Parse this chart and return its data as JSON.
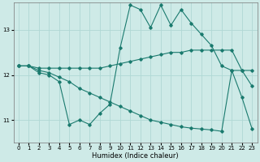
{
  "bg_color": "#ceeae7",
  "grid_color": "#b0d8d4",
  "line_color": "#1a7a6e",
  "xlabel": "Humidex (Indice chaleur)",
  "ylim": [
    10.5,
    13.6
  ],
  "xlim": [
    -0.5,
    23.5
  ],
  "yticks": [
    11,
    12,
    13
  ],
  "xticks": [
    0,
    1,
    2,
    3,
    4,
    5,
    6,
    7,
    8,
    9,
    10,
    11,
    12,
    13,
    14,
    15,
    16,
    17,
    18,
    19,
    20,
    21,
    22,
    23
  ],
  "line1_x": [
    0,
    1,
    2,
    3,
    4,
    5,
    6,
    7,
    8,
    9,
    10,
    11,
    12,
    13,
    14,
    15,
    16,
    17,
    18,
    19,
    20,
    21,
    22,
    23
  ],
  "line1_y": [
    12.2,
    12.2,
    12.05,
    12.0,
    11.85,
    10.9,
    11.0,
    10.9,
    11.15,
    11.35,
    12.6,
    13.55,
    13.45,
    13.05,
    13.55,
    13.1,
    13.45,
    13.15,
    12.9,
    12.65,
    12.2,
    12.1,
    12.1,
    11.75
  ],
  "line2_x": [
    0,
    1,
    2,
    3,
    4,
    5,
    6,
    7,
    8,
    9,
    10,
    11,
    12,
    13,
    14,
    15,
    16,
    17,
    18,
    19,
    20,
    21,
    22,
    23
  ],
  "line2_y": [
    12.2,
    12.2,
    12.15,
    12.15,
    12.15,
    12.15,
    12.15,
    12.15,
    12.15,
    12.2,
    12.25,
    12.3,
    12.35,
    12.4,
    12.45,
    12.5,
    12.5,
    12.55,
    12.55,
    12.55,
    12.55,
    12.55,
    12.1,
    12.1
  ],
  "line3_x": [
    0,
    1,
    2,
    3,
    4,
    5,
    6,
    7,
    8,
    9,
    10,
    11,
    12,
    13,
    14,
    15,
    16,
    17,
    18,
    19,
    20,
    21,
    22,
    23
  ],
  "line3_y": [
    12.2,
    12.2,
    12.1,
    12.05,
    11.95,
    11.85,
    11.7,
    11.6,
    11.5,
    11.4,
    11.3,
    11.2,
    11.1,
    11.0,
    10.95,
    10.9,
    10.85,
    10.82,
    10.8,
    10.78,
    10.75,
    12.1,
    11.5,
    10.8
  ]
}
